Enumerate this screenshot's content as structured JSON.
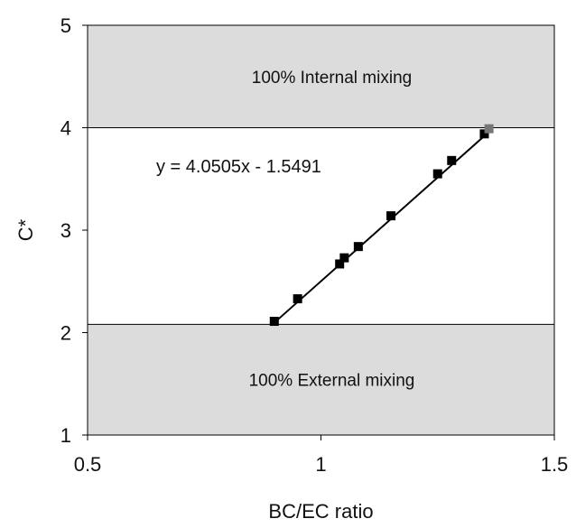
{
  "chart_data": {
    "type": "scatter",
    "title": "",
    "xlabel": "BC/EC ratio",
    "ylabel": "C*",
    "xlim": [
      0.5,
      1.5
    ],
    "ylim": [
      1,
      5
    ],
    "x_ticks": [
      "0.5",
      "1",
      "1.5"
    ],
    "y_ticks": [
      "1",
      "2",
      "3",
      "4",
      "5"
    ],
    "x_tick_values": [
      0.5,
      1,
      1.5
    ],
    "y_tick_values": [
      1,
      2,
      3,
      4,
      5
    ],
    "grid": false,
    "regions": [
      {
        "label": "100% Internal mixing",
        "y_from": 4.0,
        "y_to": 5.0,
        "color": "#dcdcdc"
      },
      {
        "label": "100% External mixing",
        "y_from": 1.0,
        "y_to": 2.08,
        "color": "#dcdcdc"
      }
    ],
    "series": [
      {
        "x": [
          0.9,
          0.95,
          1.04,
          1.05,
          1.08,
          1.15,
          1.25,
          1.28,
          1.35,
          1.36
        ],
        "y": [
          2.11,
          2.33,
          2.67,
          2.73,
          2.84,
          3.14,
          3.55,
          3.68,
          3.94,
          3.99
        ],
        "marker": "square",
        "color": "#000000"
      }
    ],
    "trendline": {
      "equation": "y = 4.0505x - 1.5491",
      "slope": 4.0505,
      "intercept": -1.5491,
      "x_range": [
        0.9,
        1.365
      ],
      "color": "#000000"
    }
  }
}
